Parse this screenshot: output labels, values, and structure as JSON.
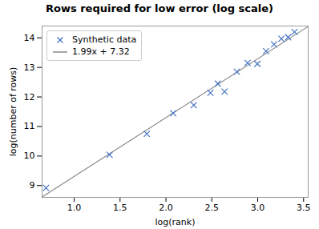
{
  "chart_data": {
    "type": "scatter",
    "title": "Rows required for low error (log scale)",
    "xlabel": "log(rank)",
    "ylabel": "log(number of rows)",
    "xlim": [
      0.65,
      3.55
    ],
    "ylim": [
      8.6,
      14.4
    ],
    "xticks": [
      {
        "value": 1.0,
        "label": "1.0"
      },
      1.5,
      {
        "value": 2.0,
        "label": "2.0"
      },
      2.5,
      {
        "value": 3.0,
        "label": "3.0"
      },
      3.5
    ],
    "yticks": [
      9,
      10,
      11,
      12,
      13,
      14
    ],
    "legend": "upper left",
    "series": [
      {
        "name": "Synthetic data",
        "type": "scatter",
        "color": "#4472c4",
        "marker": "x",
        "x": [
          0.693,
          1.386,
          1.792,
          2.079,
          2.303,
          2.485,
          2.565,
          2.639,
          2.773,
          2.89,
          2.996,
          3.091,
          3.178,
          3.258,
          3.332,
          3.401
        ],
        "values": [
          8.92,
          10.04,
          10.75,
          11.45,
          11.72,
          12.14,
          12.45,
          12.18,
          12.85,
          13.15,
          13.12,
          13.55,
          13.78,
          13.97,
          14.02,
          14.2
        ]
      },
      {
        "name": "1.99x + 7.32",
        "type": "line",
        "color": "#888888",
        "x": [
          0.65,
          3.55
        ],
        "values": [
          8.6135,
          14.3845
        ]
      }
    ]
  }
}
